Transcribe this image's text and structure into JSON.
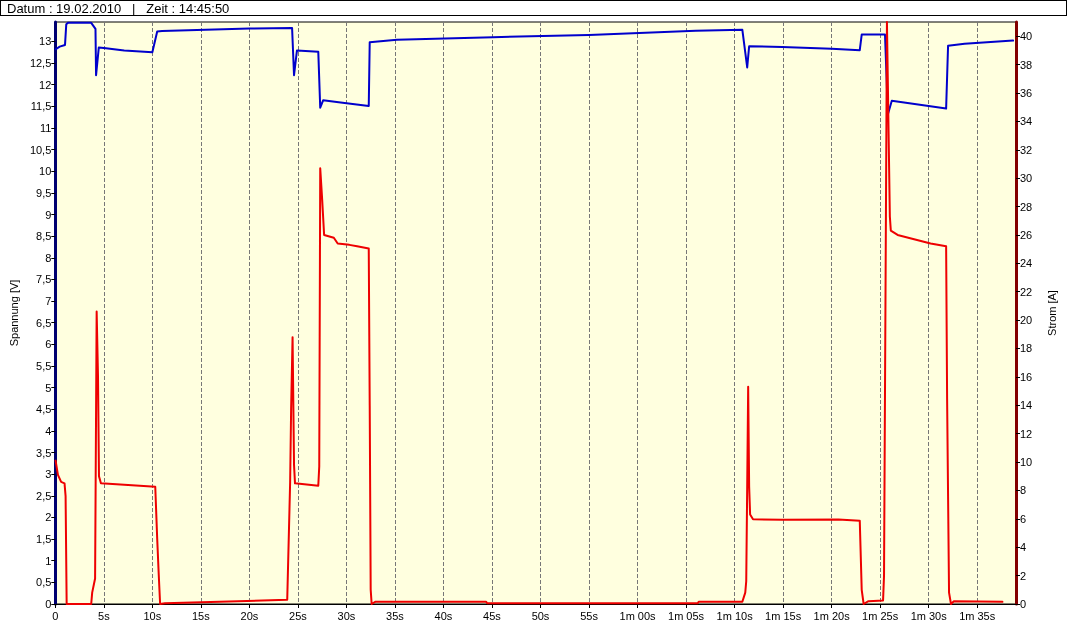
{
  "chart_data": {
    "type": "line",
    "title": "Datum : 19.02.2010   |   Zeit : 14:45:50",
    "ylabel": "Spannung [V]",
    "y2label": "Strom [A]",
    "xlim": [
      0,
      99
    ],
    "xticks": [
      0,
      {
        "value": 5,
        "label": "5s"
      },
      {
        "value": 10,
        "label": "10s"
      },
      {
        "value": 15,
        "label": "15s"
      },
      {
        "value": 20,
        "label": "20s"
      },
      {
        "value": 25,
        "label": "25s"
      },
      {
        "value": 30,
        "label": "30s"
      },
      {
        "value": 35,
        "label": "35s"
      },
      {
        "value": 40,
        "label": "40s"
      },
      {
        "value": 45,
        "label": "45s"
      },
      {
        "value": 50,
        "label": "50s"
      },
      {
        "value": 55,
        "label": "55s"
      },
      {
        "value": 60,
        "label": "1m 00s"
      },
      {
        "value": 65,
        "label": "1m 05s"
      },
      {
        "value": 70,
        "label": "1m 10s"
      },
      {
        "value": 75,
        "label": "1m 15s"
      },
      {
        "value": 80,
        "label": "1m 20s"
      },
      {
        "value": 85,
        "label": "1m 25s"
      },
      {
        "value": 90,
        "label": "1m 30s"
      },
      {
        "value": 95,
        "label": "1m 35s"
      }
    ],
    "ylim": [
      0,
      13.45
    ],
    "yticks": [
      0,
      {
        "value": 0.5,
        "label": "0,5"
      },
      1,
      {
        "value": 1.5,
        "label": "1,5"
      },
      2,
      {
        "value": 2.5,
        "label": "2,5"
      },
      3,
      {
        "value": 3.5,
        "label": "3,5"
      },
      4,
      {
        "value": 4.5,
        "label": "4,5"
      },
      5,
      {
        "value": 5.5,
        "label": "5,5"
      },
      6,
      {
        "value": 6.5,
        "label": "6,5"
      },
      7,
      {
        "value": 7.5,
        "label": "7,5"
      },
      8,
      {
        "value": 8.5,
        "label": "8,5"
      },
      9,
      {
        "value": 9.5,
        "label": "9,5"
      },
      10,
      {
        "value": 10.5,
        "label": "10,5"
      },
      11,
      {
        "value": 11.5,
        "label": "11,5"
      },
      12,
      {
        "value": 12.5,
        "label": "12,5"
      },
      13
    ],
    "y2lim": [
      0,
      41
    ],
    "y2ticks": [
      0,
      2,
      4,
      6,
      8,
      10,
      12,
      14,
      16,
      18,
      20,
      22,
      24,
      26,
      28,
      30,
      32,
      34,
      36,
      38,
      40
    ],
    "grid": "x",
    "marker": "none",
    "line_style": "solid",
    "series": [
      {
        "color": "#0000cc",
        "x": [
          0.05,
          0.45,
          1.0,
          1.13,
          1.3,
          3.7,
          4.14,
          4.2,
          4.48,
          5.0,
          7.1,
          10.0,
          10.5,
          11.0,
          20.0,
          24.4,
          24.6,
          24.9,
          27.1,
          27.3,
          27.6,
          29.4,
          32.3,
          32.4,
          35.2,
          45.1,
          55.0,
          66.0,
          70.8,
          71.3,
          71.5,
          74.9,
          80.0,
          82.9,
          83.1,
          85.5,
          85.8,
          86.2,
          91.8,
          92.0,
          93.7,
          98.7
        ],
        "values": [
          12.82,
          12.88,
          12.92,
          13.4,
          13.43,
          13.43,
          13.29,
          12.22,
          12.86,
          12.85,
          12.79,
          12.75,
          13.23,
          13.24,
          13.3,
          13.31,
          12.22,
          12.79,
          12.76,
          11.47,
          11.64,
          11.59,
          11.51,
          12.98,
          13.04,
          13.1,
          13.15,
          13.25,
          13.27,
          12.4,
          12.89,
          12.87,
          12.83,
          12.8,
          13.16,
          13.16,
          11.32,
          11.63,
          11.45,
          12.9,
          12.95,
          13.02
        ]
      },
      {
        "color": "#ee0000",
        "axis": "y2",
        "x": [
          0.03,
          0.27,
          0.6,
          0.95,
          1.06,
          1.17,
          3.7,
          3.8,
          4.1,
          4.26,
          4.4,
          4.5,
          4.7,
          10.3,
          10.5,
          10.65,
          10.8,
          11.3,
          23.9,
          24.2,
          24.3,
          24.45,
          24.6,
          24.7,
          27.1,
          27.2,
          27.3,
          27.5,
          27.7,
          28.7,
          29.1,
          30.3,
          31.1,
          32.3,
          32.4,
          32.5,
          32.6,
          33.0,
          44.4,
          44.5,
          66.2,
          66.3,
          70.8,
          71.1,
          71.2,
          71.3,
          71.4,
          71.5,
          71.6,
          71.9,
          74.9,
          80.7,
          82.9,
          83.1,
          83.3,
          83.8,
          85.3,
          85.4,
          85.7,
          86.0,
          86.1,
          86.8,
          88.5,
          90.2,
          91.8,
          91.9,
          92.0,
          92.1,
          92.3,
          92.6,
          97.6
        ],
        "values": [
          10.1,
          9.1,
          8.6,
          8.5,
          7.6,
          0,
          0,
          0.8,
          1.8,
          20.6,
          16,
          9.0,
          8.5,
          8.26,
          4.6,
          2.2,
          0,
          0.05,
          0.3,
          8.6,
          13.7,
          18.8,
          9.8,
          8.5,
          8.33,
          9.7,
          30.7,
          28.5,
          26.0,
          25.8,
          25.4,
          25.3,
          25.2,
          25.05,
          14.0,
          1.0,
          0,
          0.16,
          0.16,
          0.05,
          0.05,
          0.16,
          0.16,
          0.8,
          1.6,
          8.3,
          15.3,
          8.3,
          6.3,
          5.97,
          5.93,
          5.95,
          5.87,
          1.0,
          0,
          0.2,
          0.25,
          2,
          41,
          27.3,
          26.3,
          26.0,
          25.7,
          25.4,
          25.2,
          14.5,
          7.6,
          0.8,
          0,
          0.2,
          0.15
        ]
      }
    ]
  }
}
